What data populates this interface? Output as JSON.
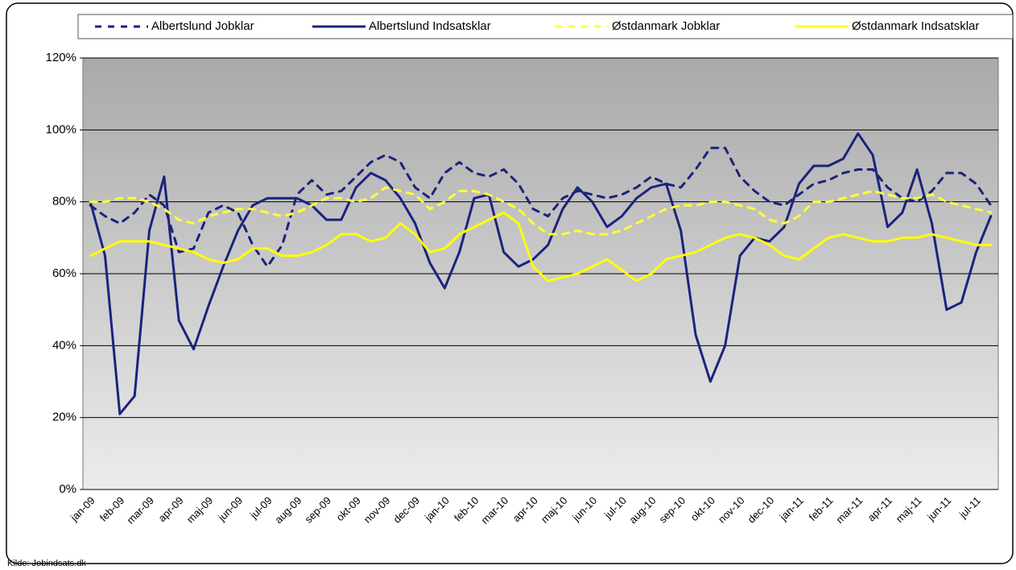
{
  "chart_data": {
    "type": "line",
    "source": "Kilde: Jobindsats.dk",
    "categories": [
      "jan-09",
      null,
      "feb-09",
      null,
      "mar-09",
      null,
      "apr-09",
      null,
      "maj-09",
      null,
      "jun-09",
      null,
      "jul-09",
      null,
      "aug-09",
      null,
      "sep-09",
      null,
      "okt-09",
      null,
      "nov-09",
      null,
      "dec-09",
      null,
      "jan-10",
      null,
      "feb-10",
      null,
      "mar-10",
      null,
      "apr-10",
      null,
      "maj-10",
      null,
      "jun-10",
      null,
      "jul-10",
      null,
      "aug-10",
      null,
      "sep-10",
      null,
      "okt-10",
      null,
      "nov-10",
      null,
      "dec-10",
      null,
      "jan-11",
      null,
      "feb-11",
      null,
      "mar-11",
      null,
      "apr-11",
      null,
      "maj-11",
      null,
      "jun-11",
      null,
      "jul-11",
      null
    ],
    "series": [
      {
        "name": "Albertslund Jobklar",
        "color": "#1a237e",
        "line_style": "dashed",
        "values": [
          79,
          76,
          74,
          77,
          82,
          79,
          66,
          67,
          77,
          79,
          77,
          68,
          62,
          68,
          82,
          86,
          82,
          83,
          87,
          91,
          93,
          91,
          84,
          81,
          88,
          91,
          88,
          87,
          89,
          85,
          78,
          76,
          81,
          83,
          82,
          81,
          82,
          84,
          87,
          85,
          84,
          89,
          95,
          95,
          87,
          83,
          80,
          79,
          82,
          85,
          86,
          88,
          89,
          89,
          84,
          81,
          80,
          83,
          88,
          88,
          85,
          79
        ]
      },
      {
        "name": "Albertslund Indsatsklar",
        "color": "#1a237e",
        "line_style": "solid",
        "values": [
          80,
          65,
          21,
          26,
          72,
          87,
          47,
          39,
          51,
          62,
          72,
          79,
          81,
          81,
          81,
          79,
          75,
          75,
          84,
          88,
          86,
          81,
          74,
          63,
          56,
          66,
          81,
          82,
          66,
          62,
          64,
          68,
          78,
          84,
          80,
          73,
          76,
          81,
          84,
          85,
          72,
          43,
          30,
          40,
          65,
          70,
          69,
          73,
          85,
          90,
          90,
          92,
          99,
          93,
          73,
          77,
          89,
          74,
          50,
          52,
          66,
          76
        ]
      },
      {
        "name": "Østdanmark Jobklar",
        "color": "#ffff33",
        "line_style": "dashed",
        "values": [
          80,
          80,
          81,
          81,
          80,
          78,
          75,
          74,
          76,
          77,
          78,
          78,
          77,
          76,
          77,
          79,
          81,
          81,
          80,
          81,
          84,
          83,
          82,
          78,
          80,
          83,
          83,
          82,
          80,
          78,
          74,
          71,
          71,
          72,
          71,
          71,
          72,
          74,
          76,
          78,
          79,
          79,
          80,
          80,
          79,
          78,
          75,
          74,
          76,
          80,
          80,
          81,
          82,
          83,
          82,
          81,
          81,
          82,
          80,
          79,
          78,
          77
        ]
      },
      {
        "name": "Østdanmark Indsatsklar",
        "color": "#ffff00",
        "line_style": "solid",
        "values": [
          65,
          67,
          69,
          69,
          69,
          68,
          67,
          66,
          64,
          63,
          64,
          67,
          67,
          65,
          65,
          66,
          68,
          71,
          71,
          69,
          70,
          74,
          71,
          66,
          67,
          71,
          73,
          75,
          77,
          74,
          62,
          58,
          59,
          60,
          62,
          64,
          61,
          58,
          60,
          64,
          65,
          66,
          68,
          70,
          71,
          70,
          68,
          65,
          64,
          67,
          70,
          71,
          70,
          69,
          69,
          70,
          70,
          71,
          70,
          69,
          68,
          68
        ]
      }
    ],
    "ylim": [
      0,
      120
    ],
    "yticks": [
      {
        "value": 0,
        "label": "0%"
      },
      {
        "value": 20,
        "label": "20%"
      },
      {
        "value": 40,
        "label": "40%"
      },
      {
        "value": 60,
        "label": "60%"
      },
      {
        "value": 80,
        "label": "80%"
      },
      {
        "value": 100,
        "label": "100%"
      },
      {
        "value": 120,
        "label": "120%"
      }
    ],
    "grid": true,
    "legend": "top"
  }
}
